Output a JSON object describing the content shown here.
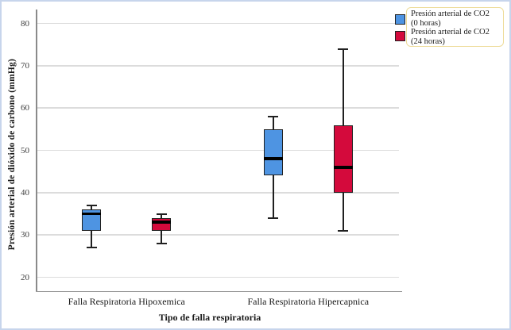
{
  "window": {
    "background": "#ffffff",
    "frame_border_color": "#c7d5ec"
  },
  "chart_data": {
    "type": "grouped_boxplot",
    "title": "",
    "xlabel": "Tipo de falla respiratoria",
    "ylabel": "Presión arterial de dióxido de carbono (mmHg)",
    "categories": [
      "Falla Respiratoria Hipoxemica",
      "Falla Respiratoria Hipercapnica"
    ],
    "y_axis": {
      "min": 20,
      "max": 80,
      "tick_interval": 10,
      "ticks": [
        80,
        70,
        60,
        50,
        40,
        30,
        20
      ]
    },
    "grid": true,
    "legend_position": "top-right",
    "series": [
      {
        "name": "Presión arterial de CO2 (0 horas)",
        "legend_lines": [
          "Presión arterial de CO2",
          "(0 horas)"
        ],
        "color": "#4e94e2",
        "boxes": [
          {
            "category": "Falla Respiratoria Hipoxemica",
            "min": 27,
            "q1": 31,
            "median": 35,
            "q3": 36,
            "max": 37
          },
          {
            "category": "Falla Respiratoria Hipercapnica",
            "min": 34,
            "q1": 44,
            "median": 48,
            "q3": 55,
            "max": 58
          }
        ]
      },
      {
        "name": "Presión arterial de CO2 (24 horas)",
        "legend_lines": [
          "Presión arterial de CO2",
          "(24 horas)"
        ],
        "color": "#d40a3c",
        "boxes": [
          {
            "category": "Falla Respiratoria Hipoxemica",
            "min": 28,
            "q1": 31,
            "median": 33,
            "q3": 34,
            "max": 35
          },
          {
            "category": "Falla Respiratoria Hipercapnica",
            "min": 31,
            "q1": 40,
            "median": 46,
            "q3": 56,
            "max": 74
          }
        ]
      }
    ],
    "style": {
      "gridline_color": "#dcdcdc",
      "axis_line_color": "#8a8a8a",
      "box_border_color": "#202020",
      "median_color": "#000000",
      "legend_border_color": "#eedc9a",
      "tick_label_color": "#3d3d3d",
      "text_color": "#1a1a1a"
    }
  }
}
